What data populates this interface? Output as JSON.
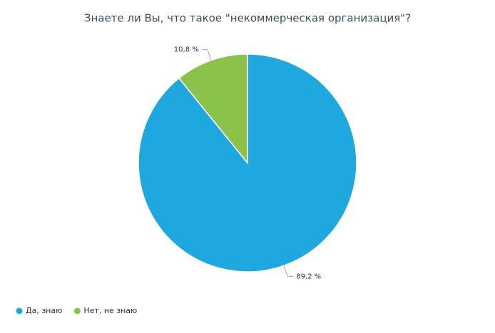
{
  "chart_data": {
    "type": "pie",
    "title": "Знаете ли Вы, что такое \"некоммерческая организация\"?",
    "categories": [
      "Да, знаю",
      "Нет, не знаю"
    ],
    "values": [
      89.2,
      10.8
    ],
    "value_labels": [
      "89,2 %",
      "10,8 %"
    ],
    "colors": [
      "#1fa8e0",
      "#8bc34a"
    ],
    "legend": "bottom-left"
  }
}
